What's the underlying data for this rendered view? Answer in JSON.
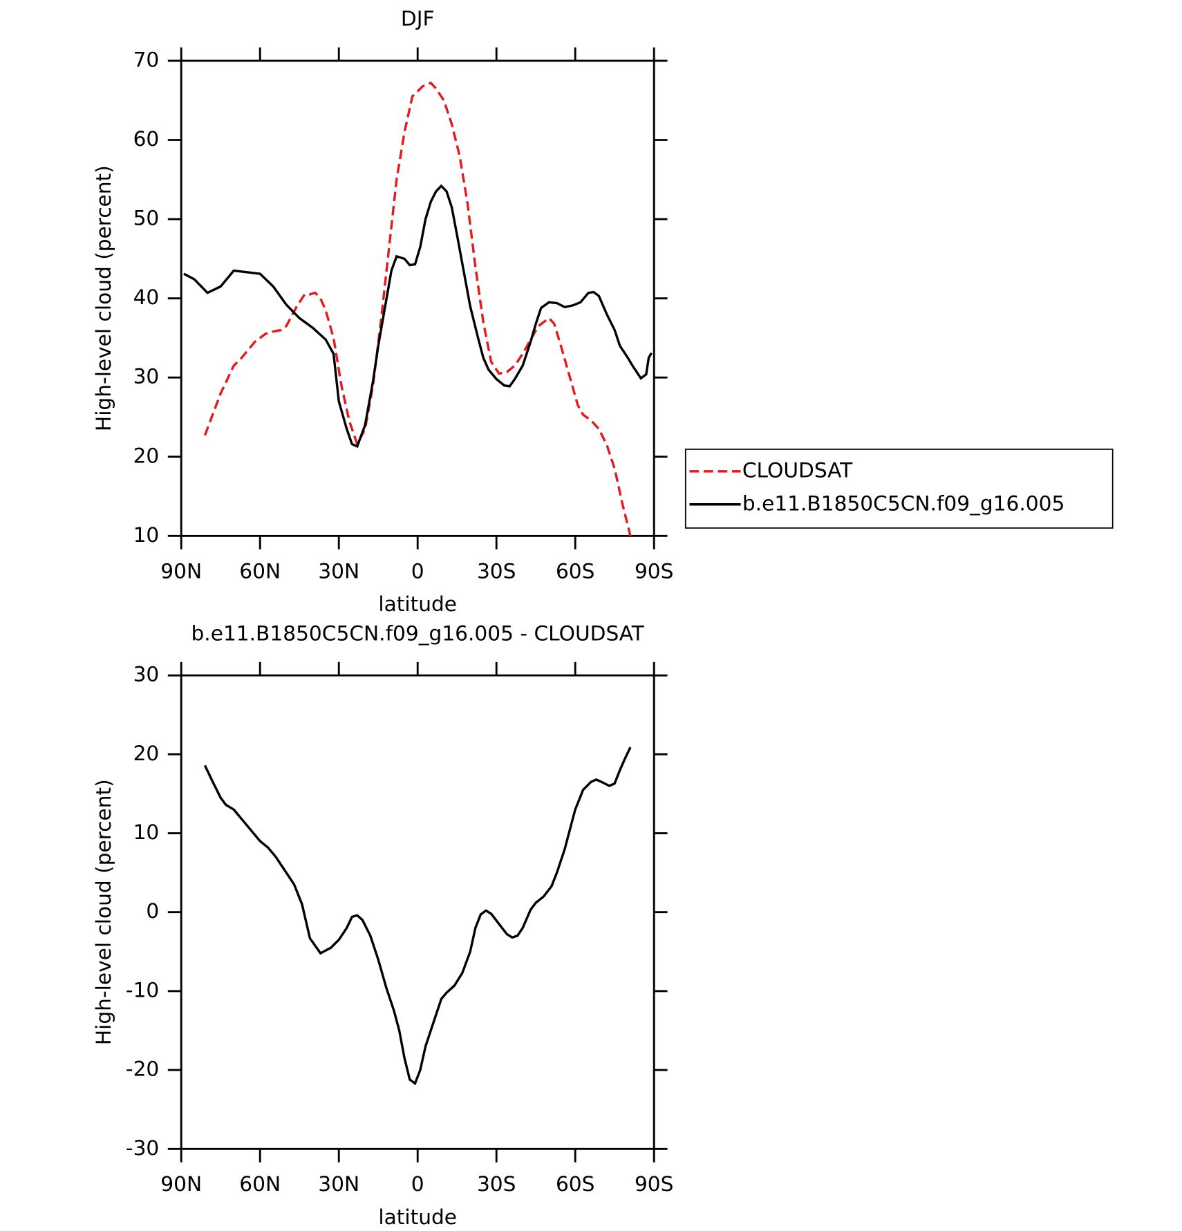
{
  "chart_data": [
    {
      "type": "line",
      "title": "DJF",
      "xlabel": "latitude",
      "ylabel": "High-level cloud (percent)",
      "xlim": [
        90,
        -90
      ],
      "xticks": [
        {
          "value": 90,
          "label": "90N"
        },
        {
          "value": 60,
          "label": "60N"
        },
        {
          "value": 30,
          "label": "30N"
        },
        0,
        {
          "value": -30,
          "label": "30S"
        },
        {
          "value": -60,
          "label": "60S"
        },
        {
          "value": -90,
          "label": "90S"
        }
      ],
      "ylim": [
        10,
        70
      ],
      "yticks": [
        10,
        20,
        30,
        40,
        50,
        60,
        70
      ],
      "legend": "right",
      "series": [
        {
          "name": "CLOUDSAT",
          "color": "#e41a1c",
          "dashed": true,
          "x": [
            81,
            75,
            70,
            67,
            62,
            58,
            55,
            52,
            50,
            46,
            43,
            41,
            39,
            37,
            35,
            32,
            29,
            26,
            23,
            20,
            17,
            14,
            11,
            8,
            5,
            2,
            -2,
            -5,
            -7,
            -10,
            -13,
            -16,
            -19,
            -22,
            -25,
            -28,
            -31,
            -34,
            -37,
            -40,
            -43,
            -46,
            -50,
            -52,
            -55,
            -58,
            -61,
            -63,
            -66,
            -69,
            -72,
            -75,
            -78,
            -81
          ],
          "values": [
            22.7,
            28,
            31.5,
            32.5,
            34.5,
            35.5,
            35.8,
            36,
            36.5,
            39,
            40.5,
            40.5,
            40.7,
            40,
            38.5,
            35,
            29,
            24.5,
            21.6,
            23.5,
            29,
            37,
            46,
            55,
            61,
            65.5,
            66.8,
            67.2,
            66.5,
            65,
            62,
            58,
            52,
            44,
            37,
            32,
            30.5,
            30.7,
            31.5,
            33,
            34.8,
            36.5,
            37.5,
            36.8,
            33.5,
            30,
            26.5,
            25.3,
            24.6,
            23.5,
            21.5,
            18.5,
            14,
            10
          ]
        },
        {
          "name": "b.e11.B1850C5CN.f09_g16.005",
          "color": "#000000",
          "dashed": false,
          "x": [
            89,
            85,
            80,
            75,
            70,
            65,
            60,
            55,
            50,
            45,
            40,
            35,
            32,
            30,
            27,
            25,
            23,
            20,
            17,
            15,
            10,
            8,
            5,
            3,
            1,
            -1,
            -3,
            -5,
            -7,
            -9,
            -11,
            -13,
            -15,
            -20,
            -23,
            -25,
            -27,
            -30,
            -33,
            -35,
            -37,
            -40,
            -43,
            -45,
            -47,
            -50,
            -53,
            -56,
            -59,
            -62,
            -65,
            -67,
            -69,
            -72,
            -75,
            -77,
            -80,
            -82,
            -85,
            -87,
            -88,
            -89
          ],
          "values": [
            43.1,
            42.4,
            40.7,
            41.5,
            43.5,
            43.3,
            43.1,
            41.5,
            39.2,
            37.5,
            36.3,
            34.8,
            33,
            27,
            23.5,
            21.6,
            21.3,
            24,
            29.5,
            34,
            43.5,
            45.3,
            45,
            44.2,
            44.3,
            46.5,
            50,
            52.2,
            53.5,
            54.2,
            53.5,
            51.5,
            48,
            39,
            35,
            32.5,
            31,
            29.8,
            29,
            28.9,
            29.8,
            31.5,
            34.5,
            36.8,
            38.8,
            39.5,
            39.4,
            38.9,
            39.1,
            39.5,
            40.7,
            40.8,
            40.3,
            38,
            36,
            34,
            32.5,
            31.4,
            29.9,
            30.4,
            32.5,
            33.1
          ]
        }
      ]
    },
    {
      "type": "line",
      "title": "b.e11.B1850C5CN.f09_g16.005 - CLOUDSAT",
      "xlabel": "latitude",
      "ylabel": "High-level cloud (percent)",
      "xlim": [
        90,
        -90
      ],
      "xticks": [
        {
          "value": 90,
          "label": "90N"
        },
        {
          "value": 60,
          "label": "60N"
        },
        {
          "value": 30,
          "label": "30N"
        },
        0,
        {
          "value": -30,
          "label": "30S"
        },
        {
          "value": -60,
          "label": "60S"
        },
        {
          "value": -90,
          "label": "90S"
        }
      ],
      "ylim": [
        -30,
        30
      ],
      "yticks": [
        -30,
        -20,
        -10,
        0,
        10,
        20,
        30
      ],
      "series": [
        {
          "color": "#000000",
          "dashed": false,
          "x": [
            81,
            78,
            75,
            73,
            70,
            65,
            60,
            57,
            54,
            50,
            47,
            44,
            41,
            37,
            33,
            30,
            27,
            25,
            23,
            21,
            18,
            15,
            12,
            9,
            7,
            5,
            3,
            1,
            -1,
            -3,
            -6,
            -9,
            -11,
            -14,
            -17,
            -20,
            -22,
            -24,
            -26,
            -28,
            -31,
            -34,
            -36,
            -38,
            -40,
            -43,
            -45,
            -48,
            -51,
            -53,
            -56,
            -58,
            -60,
            -63,
            -66,
            -68,
            -70,
            -73,
            -75,
            -77,
            -79,
            -81
          ],
          "values": [
            18.6,
            16.5,
            14.5,
            13.6,
            13,
            11,
            9,
            8.2,
            7,
            5,
            3.5,
            1,
            -3.3,
            -5.2,
            -4.5,
            -3.5,
            -2,
            -0.6,
            -0.4,
            -1,
            -3,
            -6,
            -9.5,
            -12.5,
            -15,
            -18.5,
            -21.2,
            -21.7,
            -20,
            -17,
            -14,
            -11,
            -10.2,
            -9.3,
            -7.7,
            -5,
            -2,
            -0.3,
            0.2,
            -0.2,
            -1.5,
            -2.8,
            -3.2,
            -3,
            -2,
            0.3,
            1.2,
            2,
            3.3,
            5,
            8,
            10.5,
            13,
            15.5,
            16.5,
            16.8,
            16.5,
            16,
            16.3,
            18,
            19.5,
            20.9
          ]
        }
      ]
    }
  ]
}
